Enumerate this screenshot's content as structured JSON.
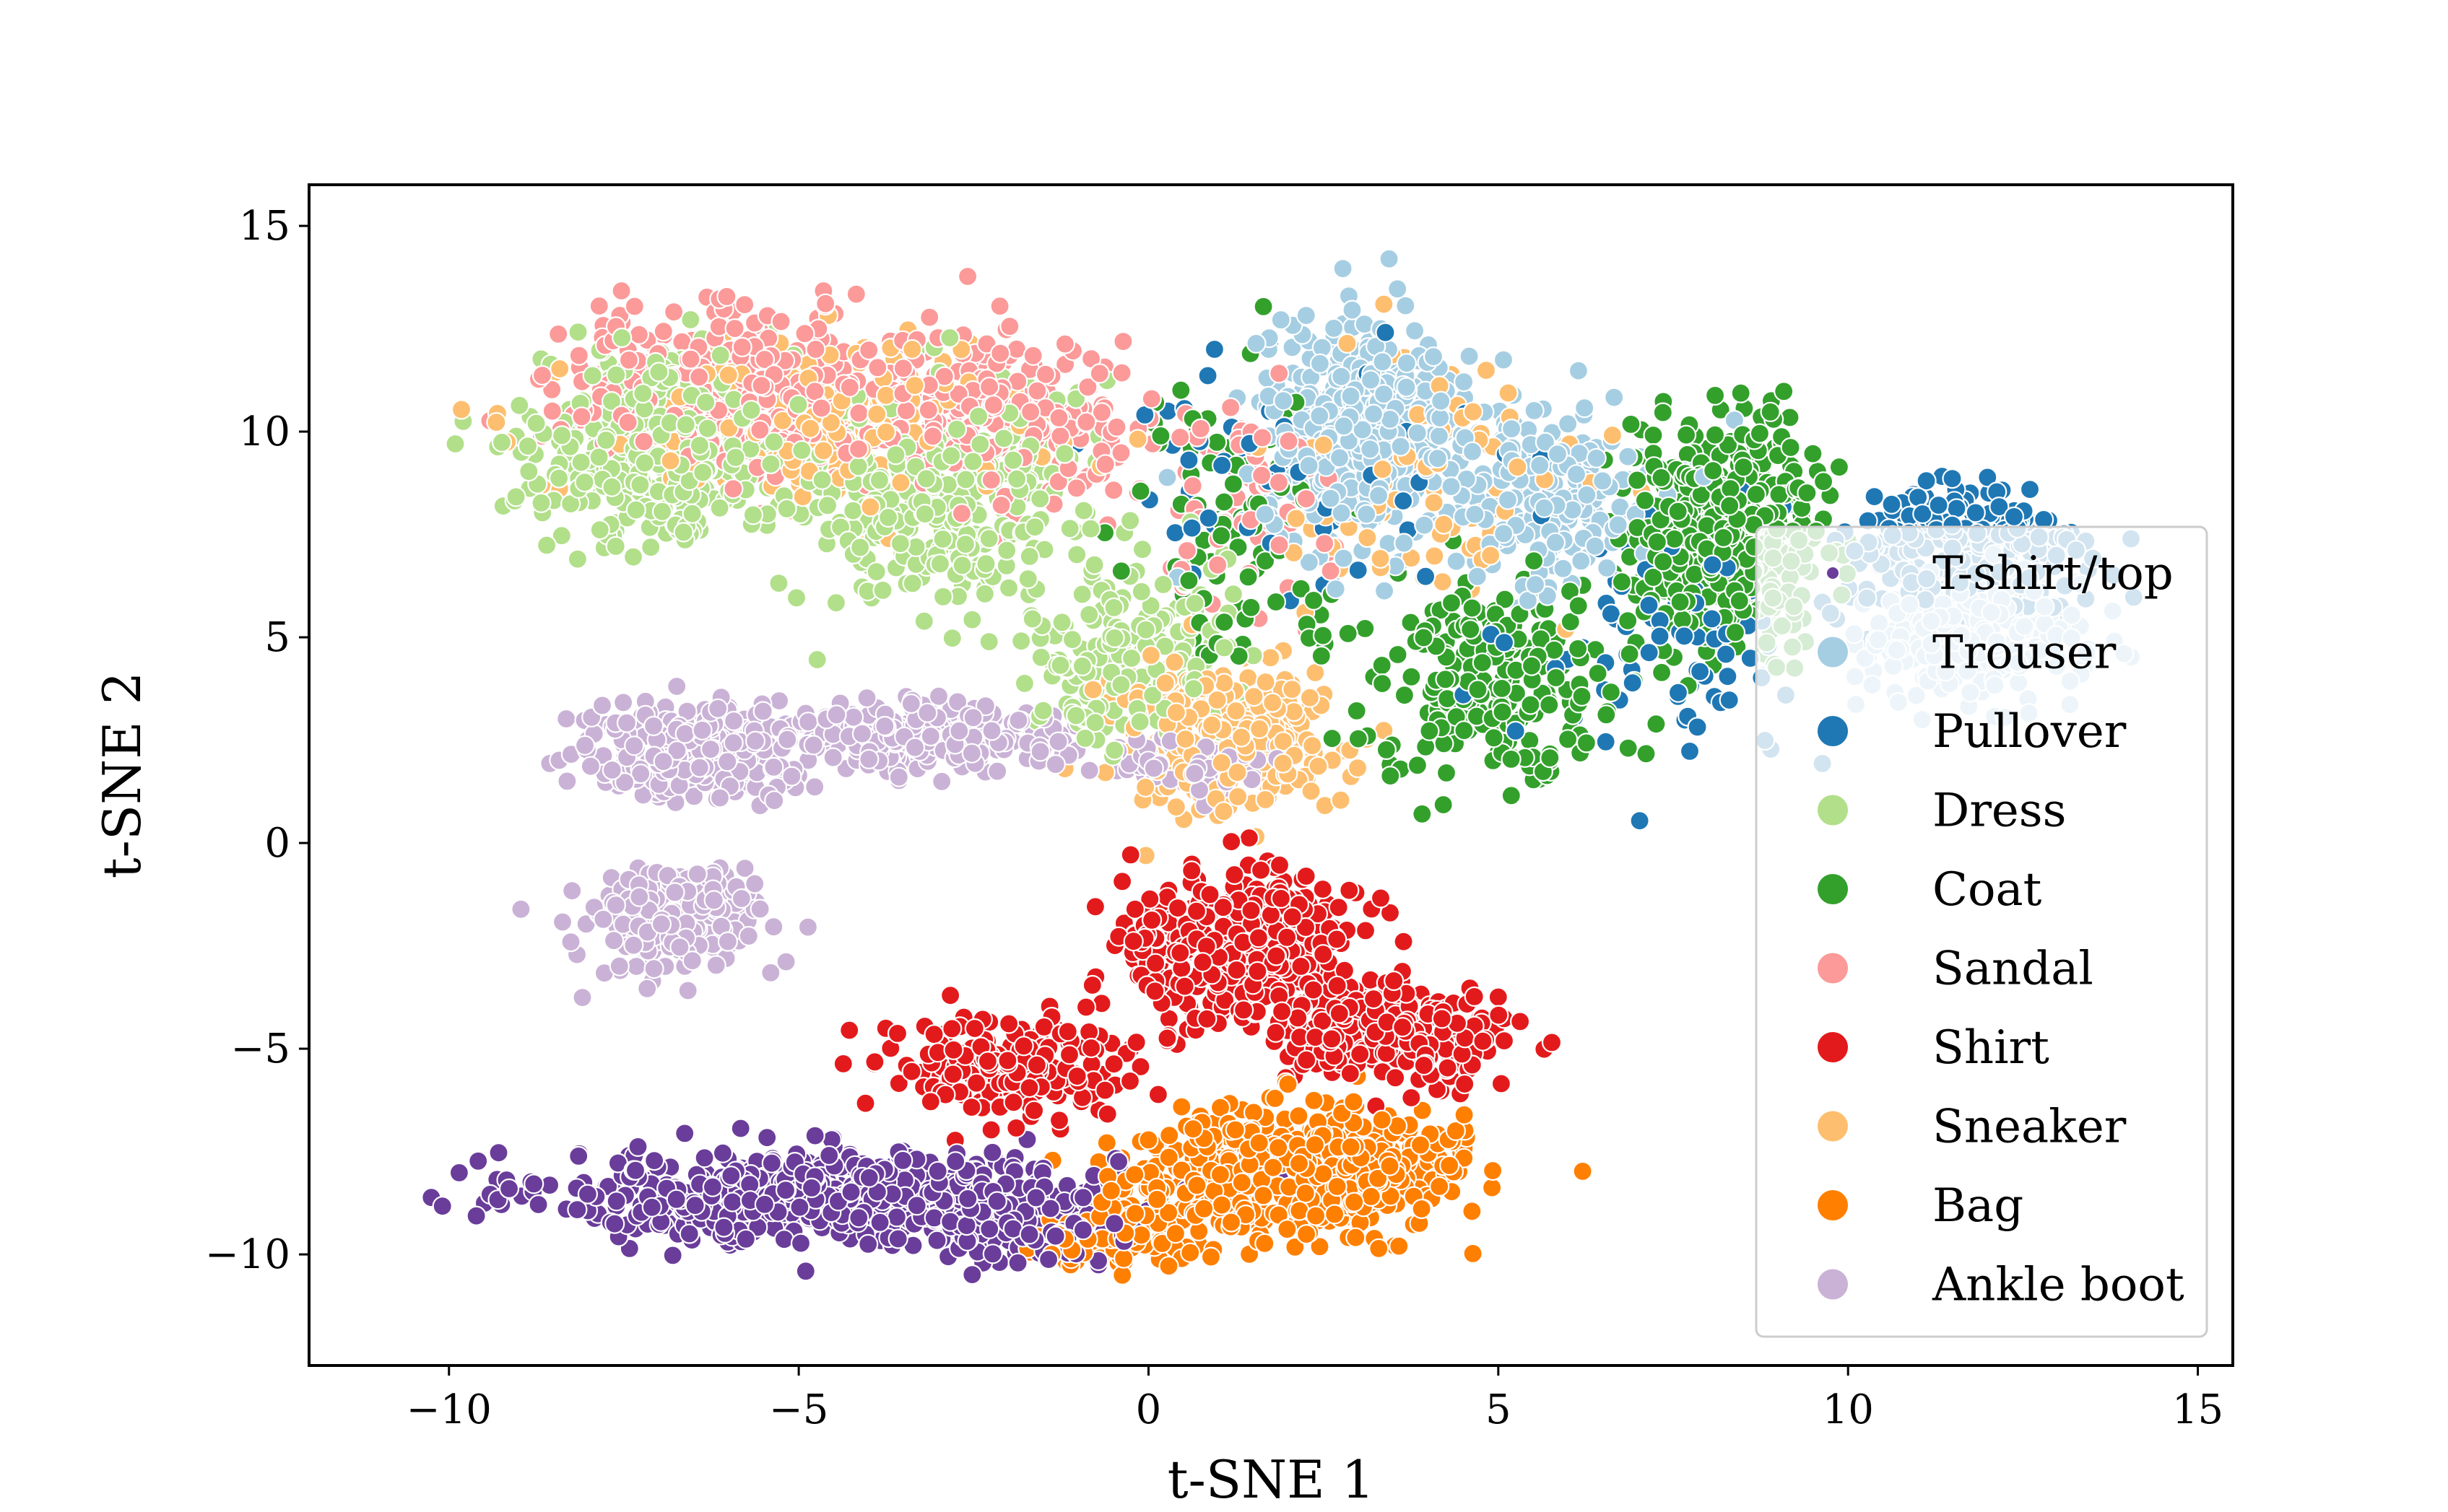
{
  "chart_data": {
    "type": "scatter",
    "title": "",
    "xlabel": "t-SNE 1",
    "ylabel": "t-SNE 2",
    "xlim": [
      -12,
      15.5
    ],
    "ylim": [
      -12.7,
      16
    ],
    "xticks": [
      -10,
      -5,
      0,
      5,
      10,
      15
    ],
    "yticks": [
      -10,
      -5,
      0,
      5,
      10,
      15
    ],
    "xtick_labels": [
      "−10",
      "−5",
      "0",
      "5",
      "10",
      "15"
    ],
    "ytick_labels": [
      "−10",
      "−5",
      "0",
      "5",
      "10",
      "15"
    ],
    "grid": false,
    "legend_position": "lower-right",
    "series": [
      {
        "name": "T-shirt/top",
        "color": "#6a3d9a",
        "clusters": [
          {
            "cx": -4.5,
            "cy": -8.6,
            "sx": 3.6,
            "sy": 1.0,
            "n": 700
          },
          {
            "cx": -1.5,
            "cy": -9.4,
            "sx": 1.2,
            "sy": 0.8,
            "n": 120
          }
        ]
      },
      {
        "name": "Trouser",
        "color": "#a6cee3",
        "clusters": [
          {
            "cx": 11.8,
            "cy": 5.0,
            "sx": 1.4,
            "sy": 1.3,
            "n": 300
          },
          {
            "cx": 3.0,
            "cy": 10.0,
            "sx": 1.2,
            "sy": 2.3,
            "n": 450
          },
          {
            "cx": 5.6,
            "cy": 8.5,
            "sx": 1.6,
            "sy": 2.3,
            "n": 200
          }
        ]
      },
      {
        "name": "Pullover",
        "color": "#1f78b4",
        "clusters": [
          {
            "cx": 11.6,
            "cy": 7.0,
            "sx": 1.7,
            "sy": 1.6,
            "n": 260
          },
          {
            "cx": 7.5,
            "cy": 5.0,
            "sx": 1.8,
            "sy": 2.5,
            "n": 80
          },
          {
            "cx": 2.0,
            "cy": 9.0,
            "sx": 2.8,
            "sy": 3.0,
            "n": 60
          }
        ]
      },
      {
        "name": "Dress",
        "color": "#b2df8a",
        "clusters": [
          {
            "cx": -7.0,
            "cy": 9.6,
            "sx": 1.6,
            "sy": 2.0,
            "n": 420
          },
          {
            "cx": -3.0,
            "cy": 8.5,
            "sx": 1.9,
            "sy": 2.5,
            "n": 360
          },
          {
            "cx": -0.3,
            "cy": 4.5,
            "sx": 1.3,
            "sy": 2.0,
            "n": 200
          }
        ]
      },
      {
        "name": "Coat",
        "color": "#33a02c",
        "clusters": [
          {
            "cx": 8.3,
            "cy": 7.5,
            "sx": 1.3,
            "sy": 2.4,
            "n": 450
          },
          {
            "cx": 5.0,
            "cy": 4.0,
            "sx": 1.6,
            "sy": 2.2,
            "n": 220
          },
          {
            "cx": 1.3,
            "cy": 7.8,
            "sx": 1.5,
            "sy": 3.2,
            "n": 90
          }
        ]
      },
      {
        "name": "Sandal",
        "color": "#fb9a99",
        "clusters": [
          {
            "cx": -6.0,
            "cy": 11.0,
            "sx": 2.2,
            "sy": 1.6,
            "n": 420
          },
          {
            "cx": -2.0,
            "cy": 10.5,
            "sx": 1.6,
            "sy": 1.9,
            "n": 240
          },
          {
            "cx": 1.5,
            "cy": 8.0,
            "sx": 1.5,
            "sy": 2.5,
            "n": 80
          }
        ]
      },
      {
        "name": "Shirt",
        "color": "#e31a1c",
        "clusters": [
          {
            "cx": 1.3,
            "cy": -2.5,
            "sx": 1.5,
            "sy": 1.6,
            "n": 420
          },
          {
            "cx": 3.5,
            "cy": -4.6,
            "sx": 1.4,
            "sy": 1.1,
            "n": 260
          },
          {
            "cx": -2.0,
            "cy": -5.5,
            "sx": 1.7,
            "sy": 1.2,
            "n": 200
          }
        ]
      },
      {
        "name": "Sneaker",
        "color": "#fdbf6f",
        "clusters": [
          {
            "cx": 1.0,
            "cy": 2.5,
            "sx": 1.5,
            "sy": 1.6,
            "n": 320
          },
          {
            "cx": -5.0,
            "cy": 10.2,
            "sx": 3.0,
            "sy": 2.0,
            "n": 200
          },
          {
            "cx": 4.0,
            "cy": 9.0,
            "sx": 2.0,
            "sy": 2.5,
            "n": 100
          }
        ]
      },
      {
        "name": "Bag",
        "color": "#ff7f00",
        "clusters": [
          {
            "cx": 2.2,
            "cy": -8.0,
            "sx": 2.0,
            "sy": 1.3,
            "n": 600
          },
          {
            "cx": -0.5,
            "cy": -9.2,
            "sx": 1.3,
            "sy": 0.9,
            "n": 150
          }
        ]
      },
      {
        "name": "Ankle boot",
        "color": "#cab2d6",
        "clusters": [
          {
            "cx": -6.5,
            "cy": 2.2,
            "sx": 1.4,
            "sy": 1.0,
            "n": 300
          },
          {
            "cx": -3.2,
            "cy": 2.6,
            "sx": 1.6,
            "sy": 0.7,
            "n": 260
          },
          {
            "cx": -6.8,
            "cy": -1.8,
            "sx": 1.3,
            "sy": 1.1,
            "n": 240
          },
          {
            "cx": 0.5,
            "cy": 1.8,
            "sx": 1.0,
            "sy": 0.7,
            "n": 80
          }
        ]
      }
    ]
  }
}
